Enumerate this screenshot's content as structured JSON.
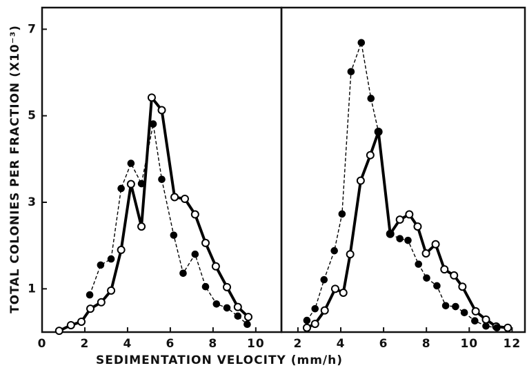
{
  "figure": {
    "xlabel": "SEDIMENTATION VELOCITY (mm/h)",
    "ylabel": "TOTAL COLONIES PER FRACTION (X10⁻³)"
  },
  "chart_data": [
    {
      "type": "line",
      "xlim": [
        0,
        11.2
      ],
      "ylim": [
        0,
        7.5
      ],
      "xticks": [
        0,
        2,
        4,
        6,
        8,
        10
      ],
      "yticks": [
        1,
        3,
        5,
        7
      ],
      "series": [
        {
          "color": "#000000",
          "style": "solid",
          "marker": "open",
          "x": [
            0.8,
            1.35,
            1.84,
            2.26,
            2.77,
            3.23,
            3.7,
            4.16,
            4.65,
            5.13,
            5.6,
            6.2,
            6.68,
            7.16,
            7.65,
            8.13,
            8.65,
            9.16,
            9.65
          ],
          "values": [
            0.03,
            0.16,
            0.24,
            0.54,
            0.69,
            0.96,
            1.9,
            3.42,
            2.44,
            5.42,
            5.13,
            3.12,
            3.08,
            2.72,
            2.06,
            1.52,
            1.04,
            0.58,
            0.35
          ]
        },
        {
          "color": "#000000",
          "style": "dashed",
          "marker": "filled",
          "x": [
            2.23,
            2.74,
            3.23,
            3.7,
            4.16,
            4.65,
            5.2,
            5.6,
            6.16,
            6.6,
            7.16,
            7.65,
            8.16,
            8.65,
            9.16,
            9.6
          ],
          "values": [
            0.86,
            1.55,
            1.69,
            3.32,
            3.9,
            3.43,
            4.81,
            3.53,
            2.24,
            1.36,
            1.8,
            1.05,
            0.65,
            0.56,
            0.37,
            0.18
          ]
        }
      ]
    },
    {
      "type": "line",
      "xlim": [
        1.23,
        12.6
      ],
      "ylim": [
        0,
        7.5
      ],
      "xticks": [
        2,
        4,
        6,
        8,
        10,
        12
      ],
      "series": [
        {
          "color": "#000000",
          "style": "solid",
          "marker": "open",
          "x": [
            2.42,
            2.8,
            3.25,
            3.74,
            4.12,
            4.44,
            4.93,
            5.38,
            5.76,
            6.31,
            6.76,
            7.2,
            7.59,
            7.98,
            8.43,
            8.84,
            9.29,
            9.68,
            10.3,
            10.78,
            11.26,
            11.8
          ],
          "values": [
            0.1,
            0.19,
            0.5,
            1.0,
            0.91,
            1.8,
            3.5,
            4.09,
            4.63,
            2.27,
            2.6,
            2.72,
            2.44,
            1.82,
            2.03,
            1.45,
            1.31,
            1.05,
            0.48,
            0.29,
            0.13,
            0.1
          ]
        },
        {
          "color": "#000000",
          "style": "dashed",
          "marker": "filled",
          "x": [
            2.42,
            2.8,
            3.22,
            3.7,
            4.06,
            4.48,
            4.96,
            5.41,
            5.76,
            6.31,
            6.76,
            7.14,
            7.63,
            8.01,
            8.49,
            8.9,
            9.36,
            9.77,
            10.26,
            10.78,
            11.29
          ],
          "values": [
            0.27,
            0.54,
            1.21,
            1.88,
            2.73,
            6.02,
            6.69,
            5.4,
            4.63,
            2.27,
            2.16,
            2.12,
            1.57,
            1.25,
            1.07,
            0.61,
            0.59,
            0.45,
            0.26,
            0.14,
            0.1
          ]
        }
      ]
    }
  ]
}
